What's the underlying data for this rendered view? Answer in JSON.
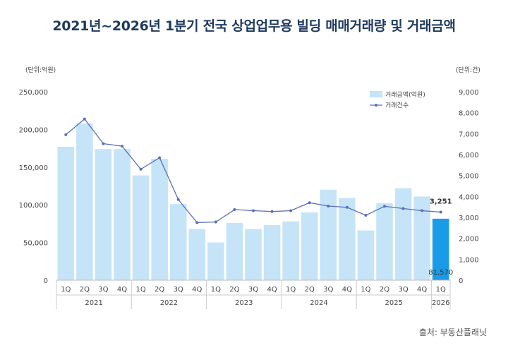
{
  "title": "2021년~2026년 1분기 전국 상업업무용 빌딩 매매거래량 및 거래금액",
  "source": "출처: 부동산플래닛",
  "chart_data": {
    "type": "bar",
    "title": "2021년~2026년 1분기 전국 상업업무용 빌딩 매매거래량 및 거래금액",
    "left_unit": "(단위:억원)",
    "right_unit": "(단위:건)",
    "categories": [
      "1Q",
      "2Q",
      "3Q",
      "4Q",
      "1Q",
      "2Q",
      "3Q",
      "4Q",
      "1Q",
      "2Q",
      "3Q",
      "4Q",
      "1Q",
      "2Q",
      "3Q",
      "4Q",
      "1Q",
      "2Q",
      "3Q",
      "4Q",
      "1Q"
    ],
    "years": [
      {
        "label": "2021",
        "count": 4
      },
      {
        "label": "2022",
        "count": 4
      },
      {
        "label": "2023",
        "count": 4
      },
      {
        "label": "2024",
        "count": 4
      },
      {
        "label": "2025",
        "count": 4
      },
      {
        "label": "2026",
        "count": 1
      }
    ],
    "series": [
      {
        "name": "거래금액(억원)",
        "type": "bar",
        "axis": "left",
        "color": "#c5e4f7",
        "values": [
          177000,
          208000,
          174000,
          174000,
          139000,
          161000,
          101000,
          68000,
          50000,
          76000,
          68000,
          73000,
          78000,
          90000,
          120000,
          109000,
          66000,
          102000,
          122000,
          111000,
          81570
        ]
      },
      {
        "name": "거래건수",
        "type": "line",
        "axis": "right",
        "color": "#5b6fb8",
        "values": [
          6950,
          7700,
          6520,
          6400,
          5300,
          5850,
          3850,
          2750,
          2780,
          3370,
          3320,
          3280,
          3320,
          3700,
          3540,
          3480,
          3100,
          3530,
          3420,
          3320,
          3251
        ]
      }
    ],
    "highlight": {
      "index": 20,
      "color": "#1a9be8"
    },
    "data_labels": [
      {
        "series": 0,
        "index": 20,
        "text": "81,570"
      },
      {
        "series": 1,
        "index": 20,
        "text": "3,251"
      }
    ],
    "y_left": {
      "min": 0,
      "max": 250000,
      "ticks": [
        "0",
        "50,000",
        "100,000",
        "150,000",
        "200,000",
        "250,000"
      ]
    },
    "y_right": {
      "min": 0,
      "max": 9000,
      "ticks": [
        "0",
        "1,000",
        "2,000",
        "3,000",
        "4,000",
        "5,000",
        "6,000",
        "7,000",
        "8,000",
        "9,000"
      ]
    },
    "legend_position": "top-right",
    "grid": false
  }
}
